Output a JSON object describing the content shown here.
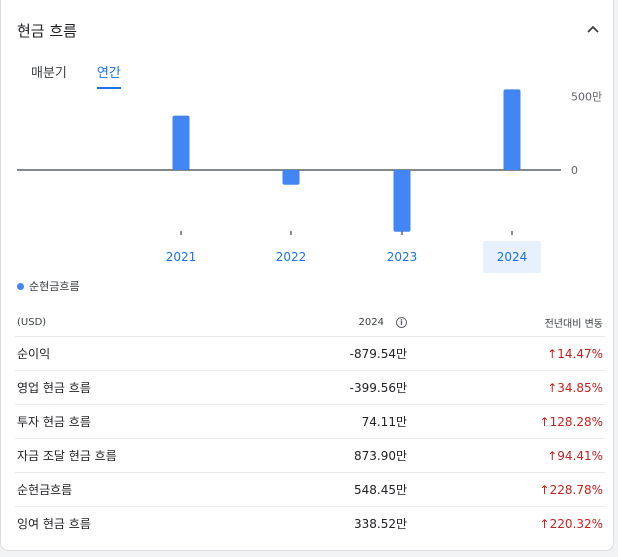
{
  "header": {
    "title": "현금 흐름"
  },
  "tabs": [
    {
      "label": "매분기"
    },
    {
      "label": "연간"
    }
  ],
  "chart_data": {
    "type": "bar",
    "categories": [
      "2021",
      "2022",
      "2023",
      "2024"
    ],
    "series": [
      {
        "name": "순현금흐름",
        "values": [
          370,
          -100,
          -420,
          548.45
        ]
      }
    ],
    "yticks": [
      {
        "value": 500,
        "label": "500만"
      },
      {
        "value": 0,
        "label": "0"
      }
    ],
    "selected": "2024",
    "color": "#4285f4",
    "grid": false
  },
  "legend": {
    "label": "순현금흐름"
  },
  "table": {
    "headers": {
      "unit": "(USD)",
      "year": "2024",
      "change": "전년대비 변동"
    },
    "rows": [
      {
        "label": "순이익",
        "value": "-879.54만",
        "change": "↑14.47%"
      },
      {
        "label": "영업 현금 흐름",
        "value": "-399.56만",
        "change": "↑34.85%"
      },
      {
        "label": "투자 현금 흐름",
        "value": "74.11만",
        "change": "↑128.28%"
      },
      {
        "label": "자금 조달 현금 흐름",
        "value": "873.90만",
        "change": "↑94.41%"
      },
      {
        "label": "순현금흐름",
        "value": "548.45만",
        "change": "↑228.78%"
      },
      {
        "label": "잉여 현금 흐름",
        "value": "338.52만",
        "change": "↑220.32%"
      }
    ]
  }
}
